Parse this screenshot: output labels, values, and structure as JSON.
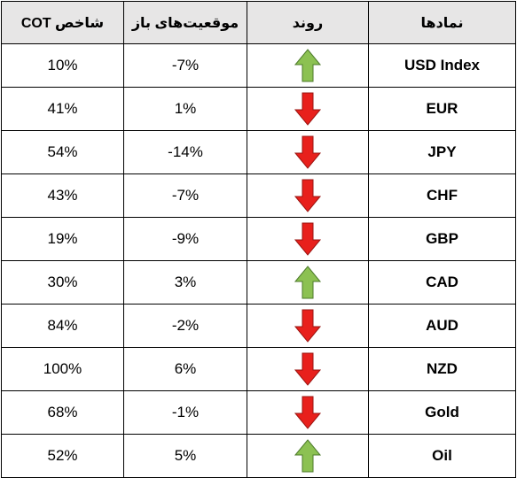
{
  "headers": {
    "cot_index": "شاخص COT",
    "open_positions": "موقعیت‌های باز",
    "trend": "روند",
    "symbols": "نمادها"
  },
  "colors": {
    "up": "#8cc152",
    "down": "#e8201c",
    "header_bg": "#e7e6e6"
  },
  "rows": [
    {
      "symbol": "USD Index",
      "trend": "up-arrow-icon",
      "open_positions": "-7%",
      "cot_index": "10%"
    },
    {
      "symbol": "EUR",
      "trend": "down-arrow-icon",
      "open_positions": "1%",
      "cot_index": "41%"
    },
    {
      "symbol": "JPY",
      "trend": "down-arrow-icon",
      "open_positions": "-14%",
      "cot_index": "54%"
    },
    {
      "symbol": "CHF",
      "trend": "down-arrow-icon",
      "open_positions": "-7%",
      "cot_index": "43%"
    },
    {
      "symbol": "GBP",
      "trend": "down-arrow-icon",
      "open_positions": "-9%",
      "cot_index": "19%"
    },
    {
      "symbol": "CAD",
      "trend": "up-arrow-icon",
      "open_positions": "3%",
      "cot_index": "30%"
    },
    {
      "symbol": "AUD",
      "trend": "down-arrow-icon",
      "open_positions": "-2%",
      "cot_index": "84%"
    },
    {
      "symbol": "NZD",
      "trend": "down-arrow-icon",
      "open_positions": "6%",
      "cot_index": "100%"
    },
    {
      "symbol": "Gold",
      "trend": "down-arrow-icon",
      "open_positions": "-1%",
      "cot_index": "68%"
    },
    {
      "symbol": "Oil",
      "trend": "up-arrow-icon",
      "open_positions": "5%",
      "cot_index": "52%"
    }
  ]
}
